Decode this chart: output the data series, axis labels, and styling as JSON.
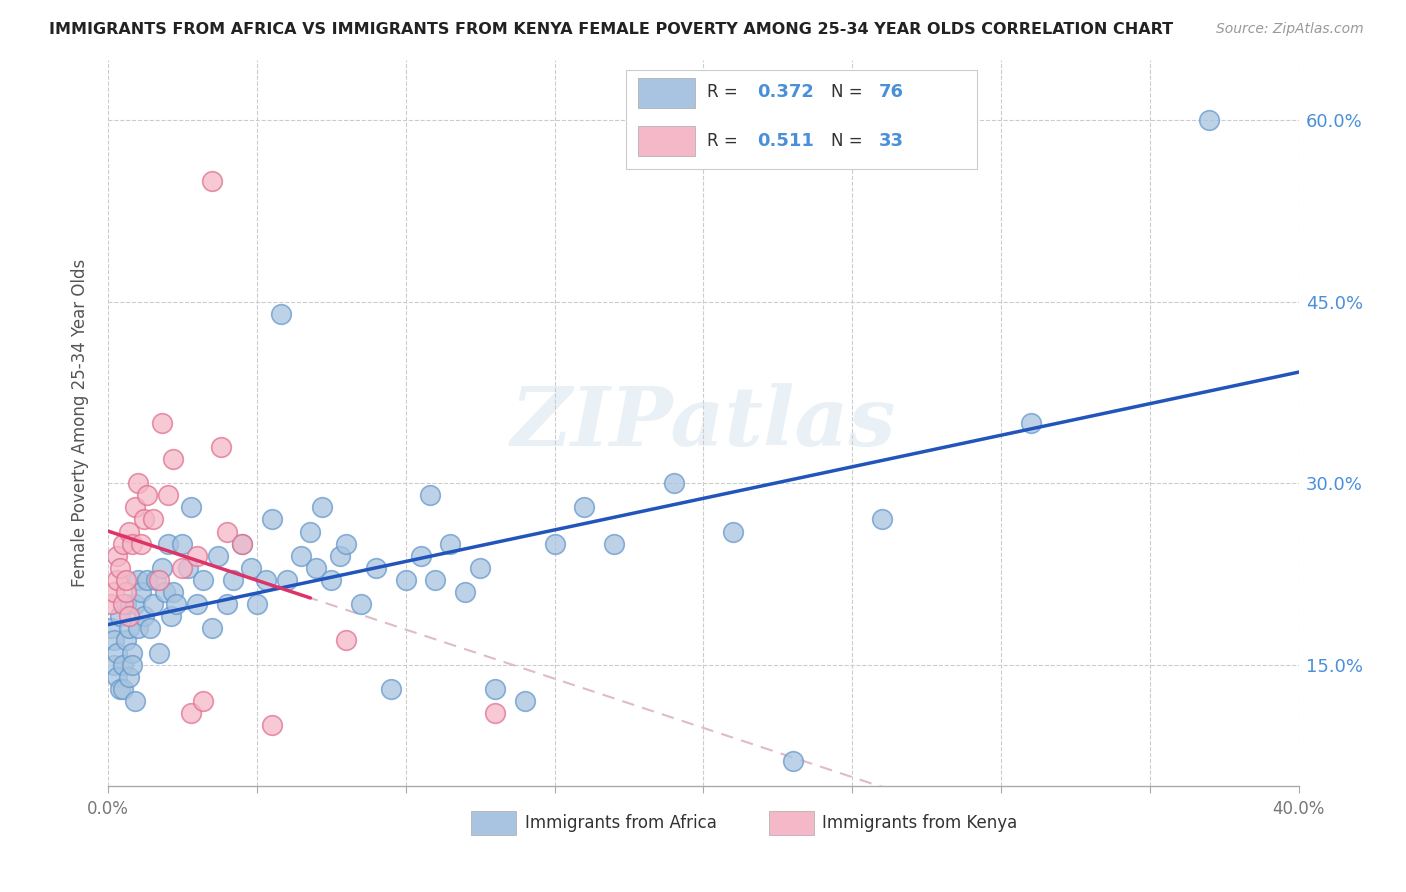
{
  "title": "IMMIGRANTS FROM AFRICA VS IMMIGRANTS FROM KENYA FEMALE POVERTY AMONG 25-34 YEAR OLDS CORRELATION CHART",
  "source": "Source: ZipAtlas.com",
  "ylabel": "Female Poverty Among 25-34 Year Olds",
  "xlim": [
    0.0,
    0.4
  ],
  "ylim": [
    0.05,
    0.65
  ],
  "africa_color": "#a8c4e0",
  "africa_edge_color": "#6699cc",
  "kenya_color": "#f4b8c8",
  "kenya_edge_color": "#e07090",
  "africa_line_color": "#2255bb",
  "kenya_line_color": "#dd3366",
  "kenya_dashed_color": "#d0a0b0",
  "watermark": "ZIPatlas",
  "legend_R_africa": "0.372",
  "legend_N_africa": "76",
  "legend_R_kenya": "0.511",
  "legend_N_kenya": "33",
  "africa_scatter_x": [
    0.001,
    0.002,
    0.002,
    0.003,
    0.003,
    0.004,
    0.004,
    0.005,
    0.005,
    0.006,
    0.006,
    0.007,
    0.007,
    0.008,
    0.008,
    0.009,
    0.009,
    0.01,
    0.01,
    0.011,
    0.012,
    0.013,
    0.014,
    0.015,
    0.016,
    0.017,
    0.018,
    0.019,
    0.02,
    0.021,
    0.022,
    0.023,
    0.025,
    0.027,
    0.028,
    0.03,
    0.032,
    0.035,
    0.037,
    0.04,
    0.042,
    0.045,
    0.048,
    0.05,
    0.053,
    0.055,
    0.058,
    0.06,
    0.065,
    0.068,
    0.07,
    0.072,
    0.075,
    0.078,
    0.08,
    0.085,
    0.09,
    0.095,
    0.1,
    0.105,
    0.108,
    0.11,
    0.115,
    0.12,
    0.125,
    0.13,
    0.14,
    0.15,
    0.16,
    0.17,
    0.19,
    0.21,
    0.23,
    0.26,
    0.31,
    0.37
  ],
  "africa_scatter_y": [
    0.18,
    0.15,
    0.17,
    0.14,
    0.16,
    0.13,
    0.19,
    0.15,
    0.13,
    0.2,
    0.17,
    0.14,
    0.18,
    0.16,
    0.15,
    0.12,
    0.2,
    0.22,
    0.18,
    0.21,
    0.19,
    0.22,
    0.18,
    0.2,
    0.22,
    0.16,
    0.23,
    0.21,
    0.25,
    0.19,
    0.21,
    0.2,
    0.25,
    0.23,
    0.28,
    0.2,
    0.22,
    0.18,
    0.24,
    0.2,
    0.22,
    0.25,
    0.23,
    0.2,
    0.22,
    0.27,
    0.44,
    0.22,
    0.24,
    0.26,
    0.23,
    0.28,
    0.22,
    0.24,
    0.25,
    0.2,
    0.23,
    0.13,
    0.22,
    0.24,
    0.29,
    0.22,
    0.25,
    0.21,
    0.23,
    0.13,
    0.12,
    0.25,
    0.28,
    0.25,
    0.3,
    0.26,
    0.07,
    0.27,
    0.35,
    0.6
  ],
  "kenya_scatter_x": [
    0.001,
    0.002,
    0.003,
    0.003,
    0.004,
    0.005,
    0.005,
    0.006,
    0.006,
    0.007,
    0.007,
    0.008,
    0.009,
    0.01,
    0.011,
    0.012,
    0.013,
    0.015,
    0.017,
    0.018,
    0.02,
    0.022,
    0.025,
    0.028,
    0.03,
    0.032,
    0.035,
    0.038,
    0.04,
    0.045,
    0.055,
    0.08,
    0.13
  ],
  "kenya_scatter_y": [
    0.2,
    0.21,
    0.24,
    0.22,
    0.23,
    0.25,
    0.2,
    0.21,
    0.22,
    0.26,
    0.19,
    0.25,
    0.28,
    0.3,
    0.25,
    0.27,
    0.29,
    0.27,
    0.22,
    0.35,
    0.29,
    0.32,
    0.23,
    0.11,
    0.24,
    0.12,
    0.55,
    0.33,
    0.26,
    0.25,
    0.1,
    0.17,
    0.11
  ]
}
